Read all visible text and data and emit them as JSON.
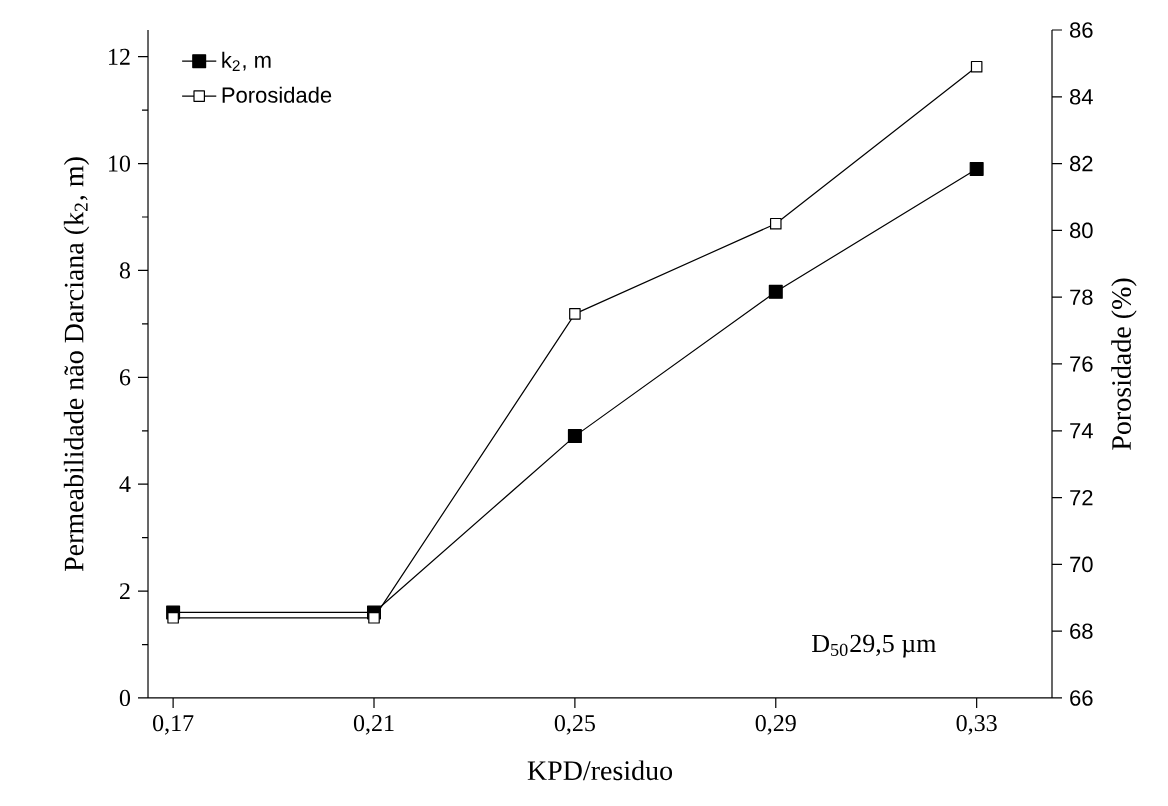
{
  "chart_data": {
    "type": "line",
    "xlabel": "KPD/residuo",
    "ylabel": "Permeabilidade não Darciana (k$_{2}$, m)",
    "y2label": "Porosidade (%)",
    "x": [
      0.17,
      0.21,
      0.25,
      0.29,
      0.33
    ],
    "series": [
      {
        "name": "k$_{2}$, m",
        "color": "#000000",
        "values": [
          1.6,
          1.6,
          4.9,
          7.6,
          9.9
        ]
      },
      {
        "name": "Porosidade",
        "color": "#000000",
        "axis": "y2",
        "values": [
          68.4,
          68.4,
          77.5,
          80.2,
          84.9
        ]
      }
    ],
    "xlim": [
      0.165,
      0.345
    ],
    "xticks": [
      {
        "value": 0.17,
        "label": "0,17"
      },
      {
        "value": 0.21,
        "label": "0,21"
      },
      {
        "value": 0.25,
        "label": "0,25"
      },
      {
        "value": 0.29,
        "label": "0,29"
      },
      {
        "value": 0.33,
        "label": "0,33"
      }
    ],
    "ylim": [
      0,
      12.5
    ],
    "yticks": [
      0,
      2,
      4,
      6,
      8,
      10,
      12
    ],
    "y2lim": [
      66,
      86
    ],
    "y2ticks": [
      66,
      68,
      70,
      72,
      74,
      76,
      78,
      80,
      82,
      84,
      86
    ],
    "annotations": [
      "D$_{50}$29,5 µm"
    ],
    "legend": "top left",
    "marker": "square",
    "line_style": "solid"
  }
}
